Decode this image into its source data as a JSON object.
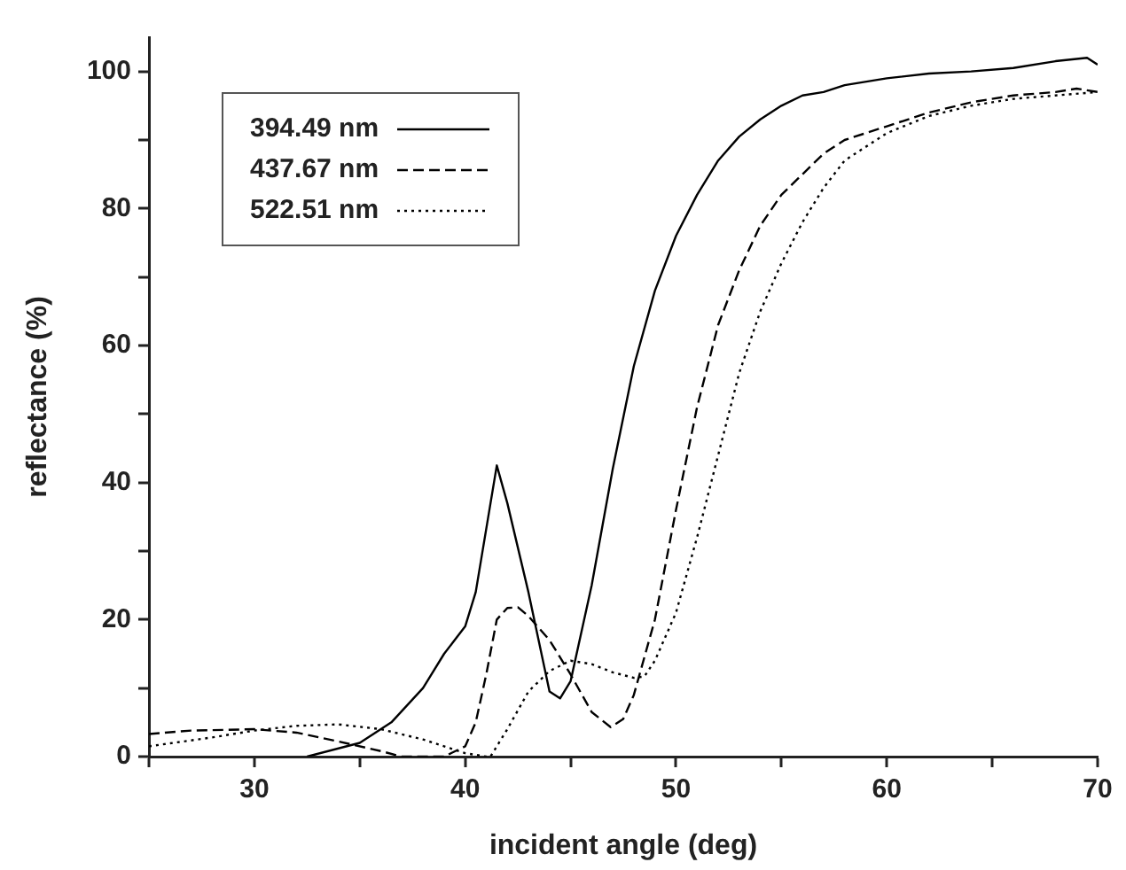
{
  "chart_data": {
    "type": "line",
    "xlabel": "incident angle (deg)",
    "ylabel": "reflectance (%)",
    "xlim": [
      25,
      70
    ],
    "ylim": [
      0,
      105
    ],
    "xticks": [
      {
        "value": 25,
        "label": null
      },
      30,
      {
        "value": 35,
        "label": null
      },
      40,
      {
        "value": 45,
        "label": null
      },
      50,
      {
        "value": 55,
        "label": null
      },
      60,
      {
        "value": 65,
        "label": null
      },
      70
    ],
    "yticks": [
      0,
      {
        "value": 10,
        "label": null
      },
      20,
      {
        "value": 30,
        "label": null
      },
      40,
      {
        "value": 50,
        "label": null
      },
      60,
      {
        "value": 70,
        "label": null
      },
      80,
      {
        "value": 90,
        "label": null
      },
      100
    ],
    "grid": false,
    "legend": "top left",
    "marker": "none",
    "series": [
      {
        "name": "394.49 nm",
        "color": "#000000",
        "line_style": "solid",
        "x": [
          32.5,
          35,
          36.5,
          38,
          39,
          40,
          40.5,
          41.5,
          42,
          43,
          44,
          44.5,
          45,
          46,
          47,
          48,
          49,
          50,
          51,
          52,
          53,
          54,
          55,
          56,
          57,
          58,
          60,
          62,
          64,
          66,
          68,
          69.5,
          70
        ],
        "values": [
          0,
          2,
          5,
          10,
          15,
          19,
          24,
          42.5,
          37,
          24,
          9.5,
          8.5,
          11,
          25,
          42,
          57,
          68,
          76,
          82,
          87,
          90.5,
          93,
          95,
          96.5,
          97,
          98,
          99,
          99.7,
          100,
          100.5,
          101.5,
          102,
          101
        ]
      },
      {
        "name": "437.67 nm",
        "color": "#000000",
        "line_style": "dashed",
        "x": [
          25,
          27,
          30,
          32,
          34,
          36,
          37,
          39,
          40,
          40.5,
          41,
          41.5,
          42,
          42.5,
          43,
          44,
          45,
          46,
          46.9,
          47.5,
          48,
          49,
          50,
          51,
          52,
          53,
          54,
          55,
          56,
          57,
          58,
          60,
          62,
          64,
          66,
          68,
          69,
          70
        ],
        "values": [
          3.3,
          3.8,
          4,
          3.5,
          2.2,
          0.8,
          0,
          0,
          1.5,
          5,
          12,
          20,
          21.7,
          21.8,
          20.5,
          17,
          12,
          6.5,
          4.3,
          5.5,
          9,
          20,
          36,
          51,
          63,
          71,
          77.5,
          82,
          85,
          88,
          90,
          92,
          94,
          95.5,
          96.5,
          97,
          97.5,
          97
        ]
      },
      {
        "name": "522.51 nm",
        "color": "#000000",
        "line_style": "dotted",
        "x": [
          25,
          28,
          30,
          32,
          34,
          36,
          38,
          40,
          41,
          41.2,
          42,
          43,
          44,
          45,
          46,
          47,
          48,
          48.5,
          49,
          50,
          51,
          52,
          53,
          54,
          55,
          56,
          57,
          58,
          60,
          62,
          64,
          66,
          68,
          70
        ],
        "values": [
          1.5,
          2.8,
          3.8,
          4.5,
          4.7,
          4,
          2.5,
          0.5,
          0,
          0,
          4,
          9.5,
          12.5,
          14,
          13.5,
          12.3,
          11.5,
          11.7,
          14,
          21,
          32,
          44,
          56,
          65,
          72,
          78,
          83,
          87,
          91,
          93.5,
          95,
          96,
          96.5,
          97
        ]
      }
    ]
  }
}
